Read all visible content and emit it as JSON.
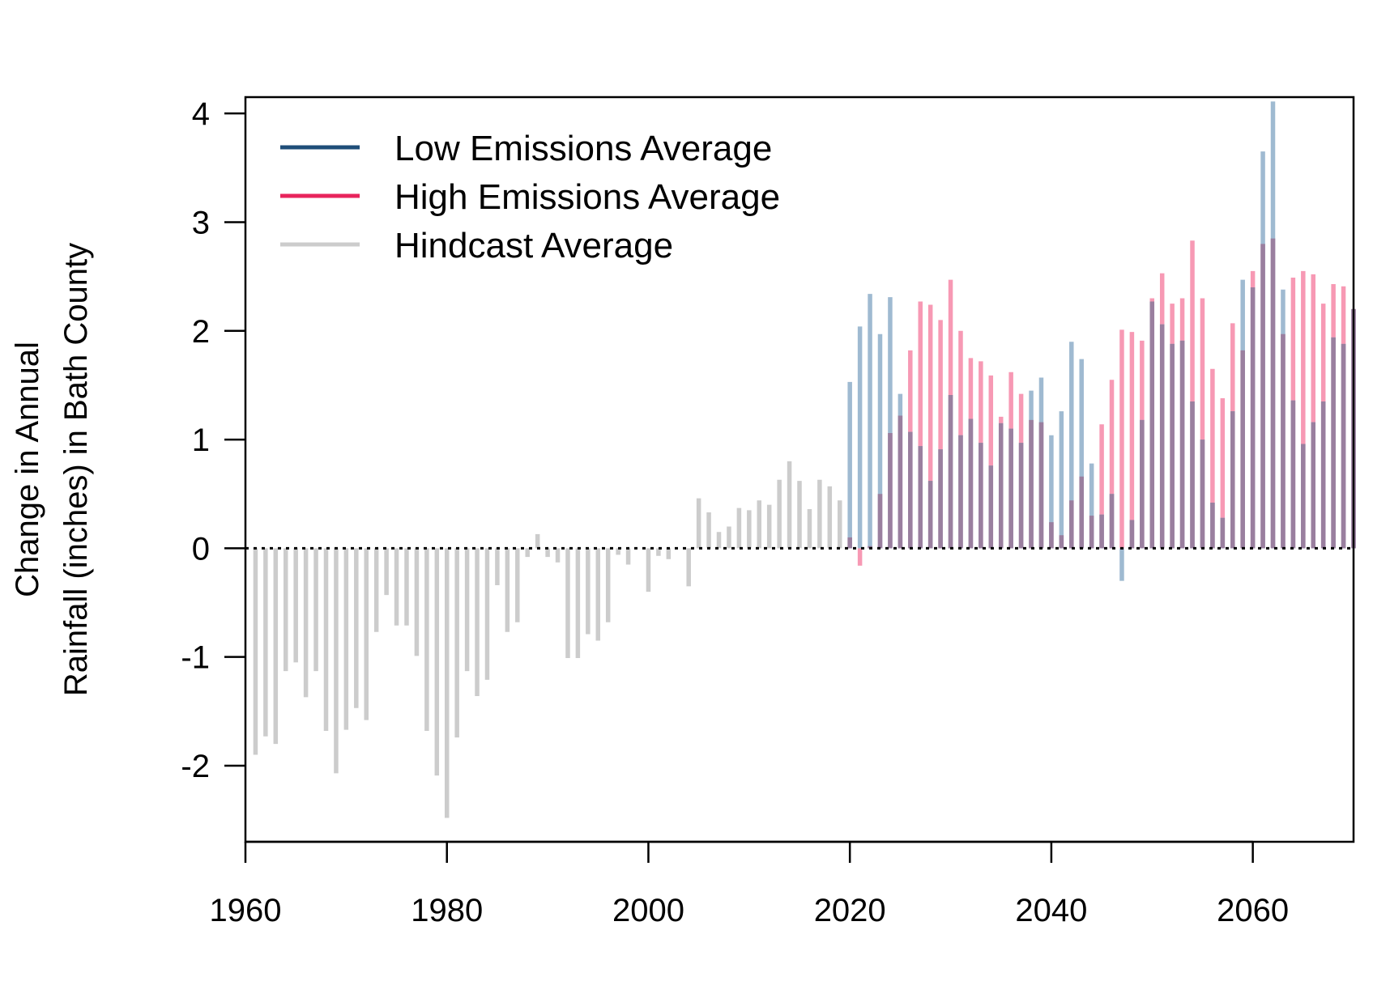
{
  "chart_data": {
    "type": "bar",
    "title": "",
    "xlabel": "",
    "ylabel_line1": "Change in Annual",
    "ylabel_line2": "Rainfall (inches) in Bath County",
    "xlim": [
      1960,
      2070
    ],
    "ylim": [
      -2.7,
      4.15
    ],
    "x_ticks": [
      1960,
      1980,
      2000,
      2020,
      2040,
      2060
    ],
    "y_ticks": [
      -2,
      -1,
      0,
      1,
      2,
      3,
      4
    ],
    "zero_line": "dotted",
    "grid": false,
    "legend": {
      "placement": "top-left",
      "entries": [
        {
          "name": "Low Emissions Average",
          "color": "#1f4e79"
        },
        {
          "name": "High Emissions Average",
          "color": "#e8245c"
        },
        {
          "name": "Hindcast Average",
          "color": "#cccccc"
        }
      ]
    },
    "series": [
      {
        "name": "Hindcast Average",
        "bar_color": "#cccccc",
        "x": [
          1961,
          1962,
          1963,
          1964,
          1965,
          1966,
          1967,
          1968,
          1969,
          1970,
          1971,
          1972,
          1973,
          1974,
          1975,
          1976,
          1977,
          1978,
          1979,
          1980,
          1981,
          1982,
          1983,
          1984,
          1985,
          1986,
          1987,
          1988,
          1989,
          1990,
          1991,
          1992,
          1993,
          1994,
          1995,
          1996,
          1997,
          1998,
          1999,
          2000,
          2001,
          2002,
          2003,
          2004,
          2005,
          2006,
          2007,
          2008,
          2009,
          2010,
          2011,
          2012,
          2013,
          2014,
          2015,
          2016,
          2017,
          2018,
          2019
        ],
        "values": [
          -1.9,
          -1.73,
          -1.8,
          -1.13,
          -1.05,
          -1.37,
          -1.13,
          -1.68,
          -2.07,
          -1.67,
          -1.47,
          -1.58,
          -0.77,
          -0.43,
          -0.71,
          -0.71,
          -0.99,
          -1.68,
          -2.09,
          -2.48,
          -1.74,
          -1.13,
          -1.36,
          -1.21,
          -0.34,
          -0.77,
          -0.68,
          -0.08,
          0.13,
          -0.08,
          -0.13,
          -1.01,
          -1.01,
          -0.79,
          -0.85,
          -0.68,
          -0.06,
          -0.15,
          0.0,
          -0.4,
          -0.07,
          -0.1,
          0.0,
          -0.35,
          0.46,
          0.33,
          0.15,
          0.2,
          0.37,
          0.35,
          0.44,
          0.4,
          0.63,
          0.8,
          0.62,
          0.36,
          0.63,
          0.57,
          0.44
        ]
      },
      {
        "name": "High Emissions Average",
        "bar_color": "#f799b4",
        "x": [
          2020,
          2021,
          2022,
          2023,
          2024,
          2025,
          2026,
          2027,
          2028,
          2029,
          2030,
          2031,
          2032,
          2033,
          2034,
          2035,
          2036,
          2037,
          2038,
          2039,
          2040,
          2041,
          2042,
          2043,
          2044,
          2045,
          2046,
          2047,
          2048,
          2049,
          2050,
          2051,
          2052,
          2053,
          2054,
          2055,
          2056,
          2057,
          2058,
          2059,
          2060,
          2061,
          2062,
          2063,
          2064,
          2065,
          2066,
          2067,
          2068,
          2069,
          2070
        ],
        "values": [
          0.1,
          -0.16,
          0.02,
          0.5,
          1.06,
          1.22,
          1.82,
          2.27,
          2.24,
          2.1,
          2.47,
          2.0,
          1.75,
          1.72,
          1.59,
          1.21,
          1.62,
          1.42,
          1.18,
          1.16,
          0.24,
          0.12,
          0.44,
          0.66,
          0.3,
          1.14,
          1.55,
          2.01,
          1.99,
          1.91,
          2.3,
          2.53,
          2.25,
          2.3,
          2.83,
          2.3,
          1.65,
          1.38,
          2.07,
          1.82,
          2.55,
          2.8,
          2.85,
          1.97,
          2.49,
          2.55,
          2.52,
          2.25,
          2.43,
          2.41,
          2.2
        ]
      },
      {
        "name": "Low Emissions Average",
        "bar_color": "#9fbad1",
        "x": [
          2020,
          2021,
          2022,
          2023,
          2024,
          2025,
          2026,
          2027,
          2028,
          2029,
          2030,
          2031,
          2032,
          2033,
          2034,
          2035,
          2036,
          2037,
          2038,
          2039,
          2040,
          2041,
          2042,
          2043,
          2044,
          2045,
          2046,
          2047,
          2048,
          2049,
          2050,
          2051,
          2052,
          2053,
          2054,
          2055,
          2056,
          2057,
          2058,
          2059,
          2060,
          2061,
          2062,
          2063,
          2064,
          2065,
          2066,
          2067,
          2068,
          2069,
          2070
        ],
        "values": [
          1.53,
          2.04,
          2.34,
          1.97,
          2.31,
          1.42,
          1.07,
          0.94,
          0.62,
          0.91,
          1.41,
          1.04,
          1.19,
          0.97,
          0.76,
          1.15,
          1.1,
          0.97,
          1.45,
          1.57,
          1.04,
          1.26,
          1.9,
          1.74,
          0.78,
          0.31,
          0.5,
          -0.3,
          0.26,
          1.18,
          2.27,
          2.06,
          1.88,
          1.91,
          1.35,
          1.0,
          0.42,
          0.28,
          1.26,
          2.47,
          2.4,
          3.65,
          4.11,
          2.38,
          1.36,
          0.96,
          1.16,
          1.35,
          1.94,
          1.88,
          2.2
        ]
      }
    ],
    "overlap_color": "#9a7f9f"
  }
}
